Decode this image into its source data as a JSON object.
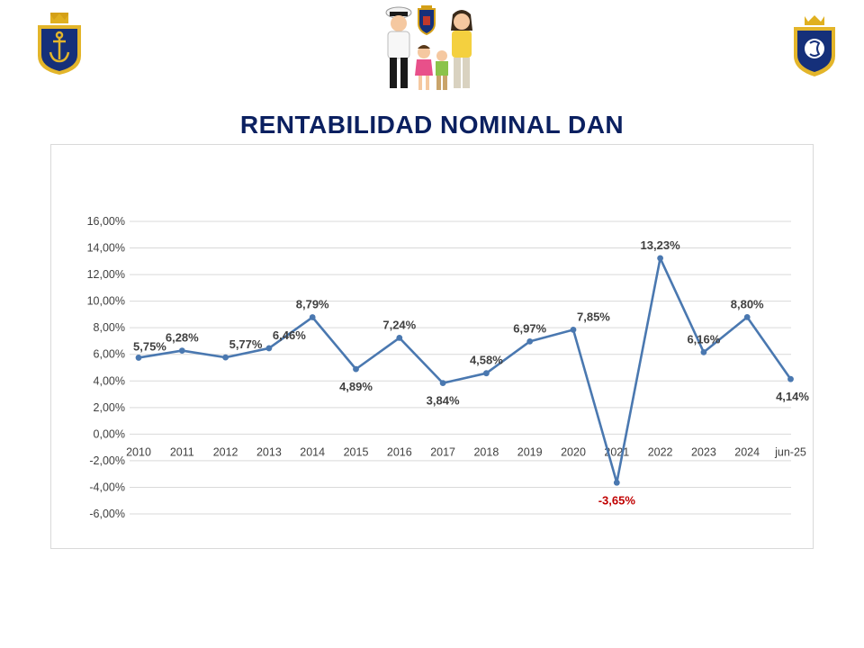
{
  "slide": {
    "title": "RENTABILIDAD NOMINAL DAN"
  },
  "logos": {
    "left": "navy-shield-anchor-logo",
    "right": "navy-shield-emblem-logo",
    "center": "navy-family-illustration"
  },
  "colors": {
    "title": "#0b2060",
    "line": "#4a78b0",
    "negative_label": "#c00000",
    "grid": "#d9d9d9"
  },
  "chart_data": {
    "type": "line",
    "title": "RENTABILIDAD NOMINAL DAN",
    "categories": [
      "2010",
      "2011",
      "2012",
      "2013",
      "2014",
      "2015",
      "2016",
      "2017",
      "2018",
      "2019",
      "2020",
      "2021",
      "2022",
      "2023",
      "2024",
      "jun-25"
    ],
    "series": [
      {
        "name": "Rentabilidad nominal",
        "values": [
          5.75,
          6.28,
          5.77,
          6.46,
          8.79,
          4.89,
          7.24,
          3.84,
          4.58,
          6.97,
          7.85,
          -3.65,
          13.23,
          6.16,
          8.8,
          4.14
        ],
        "labels": [
          "5,75%",
          "6,28%",
          "5,77%",
          "6,46%",
          "8,79%",
          "4,89%",
          "7,24%",
          "3,84%",
          "4,58%",
          "6,97%",
          "7,85%",
          "-3,65%",
          "13,23%",
          "6,16%",
          "8,80%",
          "4,14%"
        ]
      }
    ],
    "y_ticks": [
      16,
      14,
      12,
      10,
      8,
      6,
      4,
      2,
      0,
      -2,
      -4,
      -6
    ],
    "y_tick_labels": [
      "16,00%",
      "14,00%",
      "12,00%",
      "10,00%",
      "8,00%",
      "6,00%",
      "4,00%",
      "2,00%",
      "0,00%",
      "-2,00%",
      "-4,00%",
      "-6,00%"
    ],
    "ylim": [
      -6,
      16
    ],
    "xlabel": "",
    "ylabel": "",
    "grid": true,
    "legend": "none"
  }
}
